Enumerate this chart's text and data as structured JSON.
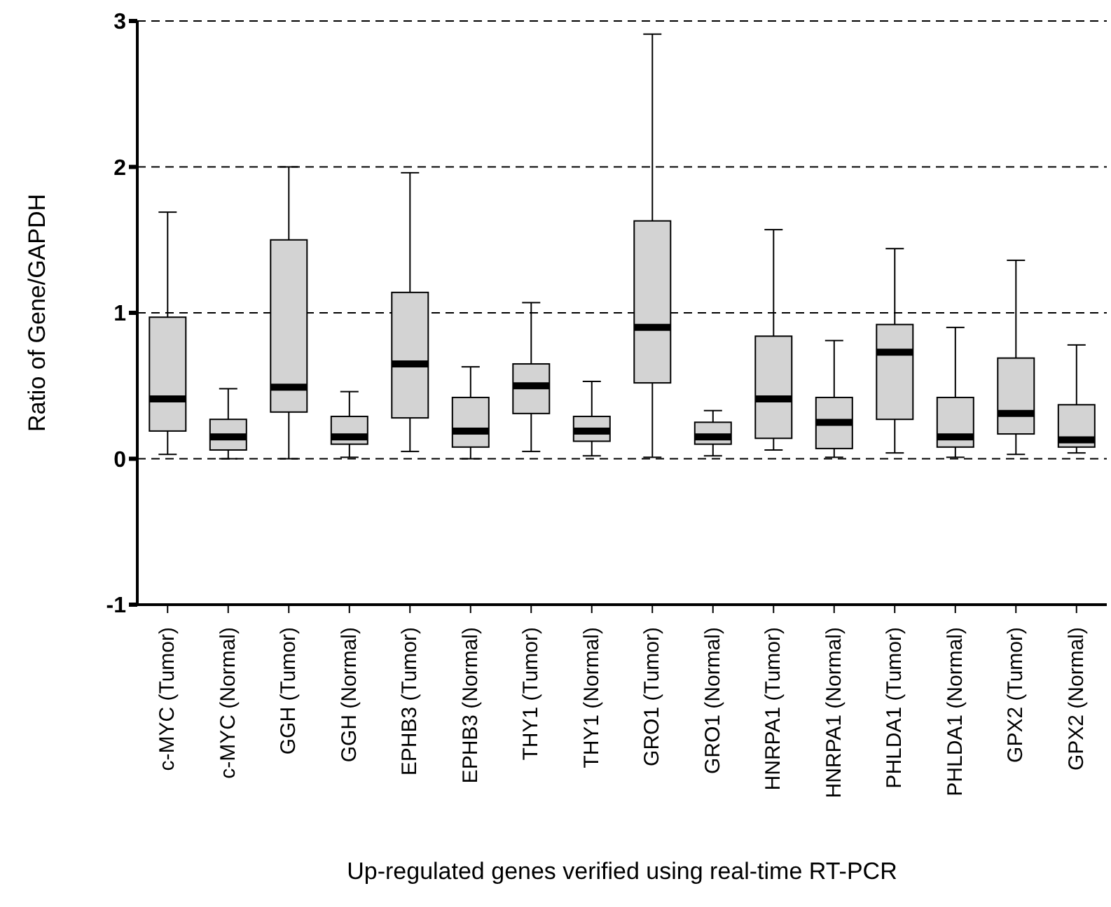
{
  "chart_data": {
    "type": "box",
    "xlabel": "Up-regulated genes verified using real-time RT-PCR",
    "ylabel": "Ratio of Gene/GAPDH",
    "categories": [
      "c-MYC (Tumor)",
      "c-MYC (Normal)",
      "GGH (Tumor)",
      "GGH (Normal)",
      "EPHB3 (Tumor)",
      "EPHB3 (Normal)",
      "THY1 (Tumor)",
      "THY1 (Normal)",
      "GRO1 (Tumor)",
      "GRO1 (Normal)",
      "HNRPA1 (Tumor)",
      "HNRPA1 (Normal)",
      "PHLDA1 (Tumor)",
      "PHLDA1 (Normal)",
      "GPX2 (Tumor)",
      "GPX2 (Normal)"
    ],
    "color": "#d3d3d3",
    "boxes": [
      {
        "low": 0.03,
        "q1": 0.19,
        "median": 0.41,
        "q3": 0.97,
        "high": 1.69
      },
      {
        "low": 0.0,
        "q1": 0.06,
        "median": 0.15,
        "q3": 0.27,
        "high": 0.48
      },
      {
        "low": 0.0,
        "q1": 0.32,
        "median": 0.49,
        "q3": 1.5,
        "high": 2.0
      },
      {
        "low": 0.01,
        "q1": 0.1,
        "median": 0.15,
        "q3": 0.29,
        "high": 0.46
      },
      {
        "low": 0.05,
        "q1": 0.28,
        "median": 0.65,
        "q3": 1.14,
        "high": 1.96
      },
      {
        "low": 0.0,
        "q1": 0.08,
        "median": 0.19,
        "q3": 0.42,
        "high": 0.63
      },
      {
        "low": 0.05,
        "q1": 0.31,
        "median": 0.5,
        "q3": 0.65,
        "high": 1.07
      },
      {
        "low": 0.02,
        "q1": 0.12,
        "median": 0.19,
        "q3": 0.29,
        "high": 0.53
      },
      {
        "low": 0.01,
        "q1": 0.52,
        "median": 0.9,
        "q3": 1.63,
        "high": 2.91
      },
      {
        "low": 0.02,
        "q1": 0.1,
        "median": 0.15,
        "q3": 0.25,
        "high": 0.33
      },
      {
        "low": 0.06,
        "q1": 0.14,
        "median": 0.41,
        "q3": 0.84,
        "high": 1.57
      },
      {
        "low": 0.01,
        "q1": 0.07,
        "median": 0.25,
        "q3": 0.42,
        "high": 0.81
      },
      {
        "low": 0.04,
        "q1": 0.27,
        "median": 0.73,
        "q3": 0.92,
        "high": 1.44
      },
      {
        "low": 0.01,
        "q1": 0.08,
        "median": 0.15,
        "q3": 0.42,
        "high": 0.9
      },
      {
        "low": 0.03,
        "q1": 0.17,
        "median": 0.31,
        "q3": 0.69,
        "high": 1.36
      },
      {
        "low": 0.04,
        "q1": 0.08,
        "median": 0.13,
        "q3": 0.37,
        "high": 0.78
      }
    ],
    "ylim": [
      -1,
      3
    ],
    "yticks": [
      -1,
      0,
      1,
      2,
      3
    ],
    "grid": "y",
    "line_style": "dashed"
  }
}
